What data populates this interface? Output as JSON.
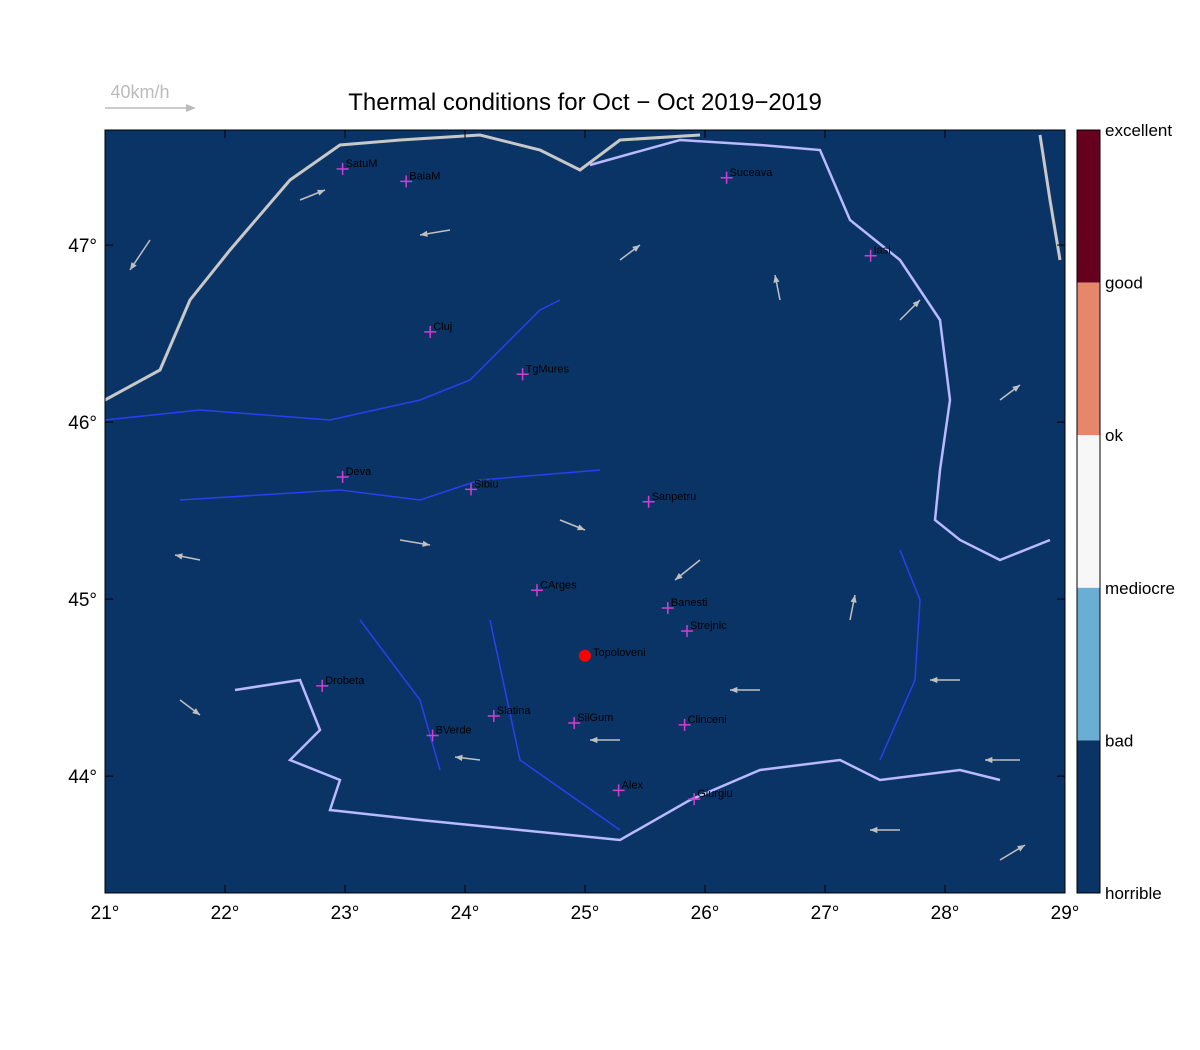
{
  "title": "Thermal conditions for Oct − Oct  2019−2019",
  "scale_label": "40km/h",
  "map": {
    "lonlim": [
      21,
      29
    ],
    "latlim": [
      43.34,
      47.65
    ],
    "background": "#0b3466",
    "xticks": [
      {
        "value": 21,
        "label": "21°"
      },
      {
        "value": 22,
        "label": "22°"
      },
      {
        "value": 23,
        "label": "23°"
      },
      {
        "value": 24,
        "label": "24°"
      },
      {
        "value": 25,
        "label": "25°"
      },
      {
        "value": 26,
        "label": "26°"
      },
      {
        "value": 27,
        "label": "27°"
      },
      {
        "value": 28,
        "label": "28°"
      },
      {
        "value": 29,
        "label": "29°"
      }
    ],
    "yticks": [
      {
        "value": 44,
        "label": "44°"
      },
      {
        "value": 45,
        "label": "45°"
      },
      {
        "value": 46,
        "label": "46°"
      },
      {
        "value": 47,
        "label": "47°"
      }
    ],
    "cities": [
      {
        "name": "SatuM",
        "lon": 22.98,
        "lat": 47.43
      },
      {
        "name": "BaiaM",
        "lon": 23.51,
        "lat": 47.36
      },
      {
        "name": "Suceava",
        "lon": 26.18,
        "lat": 47.38
      },
      {
        "name": "Iasi",
        "lon": 27.38,
        "lat": 46.94
      },
      {
        "name": "Cluj",
        "lon": 23.71,
        "lat": 46.51
      },
      {
        "name": "TgMures",
        "lon": 24.48,
        "lat": 46.27
      },
      {
        "name": "Deva",
        "lon": 22.98,
        "lat": 45.69
      },
      {
        "name": "Sibiu",
        "lon": 24.05,
        "lat": 45.62
      },
      {
        "name": "Sanpetru",
        "lon": 25.53,
        "lat": 45.55
      },
      {
        "name": "CArges",
        "lon": 24.6,
        "lat": 45.05
      },
      {
        "name": "Banesti",
        "lon": 25.69,
        "lat": 44.95
      },
      {
        "name": "Strejnic",
        "lon": 25.85,
        "lat": 44.82
      },
      {
        "name": "Drobeta",
        "lon": 22.81,
        "lat": 44.51
      },
      {
        "name": "Slatina",
        "lon": 24.24,
        "lat": 44.34
      },
      {
        "name": "SilGum",
        "lon": 24.91,
        "lat": 44.3
      },
      {
        "name": "Clinceni",
        "lon": 25.83,
        "lat": 44.29
      },
      {
        "name": "BVerde",
        "lon": 23.73,
        "lat": 44.23
      },
      {
        "name": "Alex",
        "lon": 25.28,
        "lat": 43.92
      },
      {
        "name": "Giurgiu",
        "lon": 25.91,
        "lat": 43.87
      }
    ],
    "marker": {
      "name": "Topoloveni",
      "lon": 25.0,
      "lat": 44.68,
      "color": "#ff0000"
    }
  },
  "colorbar": {
    "labels": [
      "excellent",
      "good",
      "ok",
      "mediocre",
      "bad",
      "horrible"
    ],
    "colors": [
      "#67001f",
      "#e6866a",
      "#f7f7f7",
      "#6aaed3",
      "#0b3466"
    ]
  }
}
